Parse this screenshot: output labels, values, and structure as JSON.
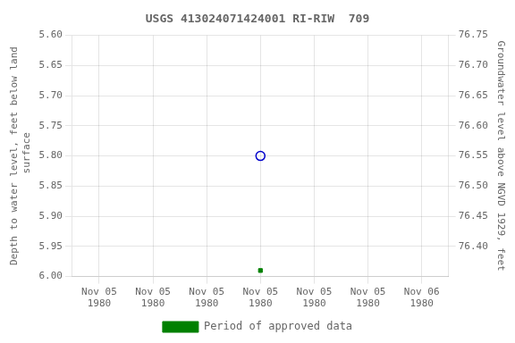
{
  "chart_data": {
    "type": "scatter",
    "title": "USGS 413024071424001 RI-RIW  709",
    "y_label": "Depth to water level, feet below land\n surface",
    "y2_label": "Groundwater level above NGVD 1929, feet",
    "categories": [
      "Nov 05\n1980",
      "Nov 05\n1980",
      "Nov 05\n1980",
      "Nov 05\n1980",
      "Nov 05\n1980",
      "Nov 05\n1980",
      "Nov 06\n1980"
    ],
    "series": [
      {
        "color": "#0000cc",
        "marker": "circle",
        "values": [
          null,
          null,
          null,
          5.8,
          null,
          null,
          null
        ]
      },
      {
        "name": "Period of approved data",
        "color": "#008000",
        "marker": "square",
        "values": [
          null,
          null,
          null,
          5.99,
          null,
          null,
          null
        ]
      }
    ],
    "ylim": [
      6.0,
      5.6
    ],
    "yticks": [
      {
        "value": 5.6,
        "label": "5.60"
      },
      5.65,
      {
        "value": 5.7,
        "label": "5.70"
      },
      5.75,
      {
        "value": 5.8,
        "label": "5.80"
      },
      5.85,
      {
        "value": 5.9,
        "label": "5.90"
      },
      5.95,
      {
        "value": 6.0,
        "label": "6.00"
      }
    ],
    "y2lim": [
      76.35,
      76.75
    ],
    "y2ticks": [
      76.75,
      {
        "value": 76.7,
        "label": "76.70"
      },
      76.65,
      {
        "value": 76.6,
        "label": "76.60"
      },
      76.55,
      {
        "value": 76.5,
        "label": "76.50"
      },
      76.45,
      {
        "value": 76.4,
        "label": "76.40"
      }
    ],
    "grid": true,
    "legend": "bottom"
  }
}
